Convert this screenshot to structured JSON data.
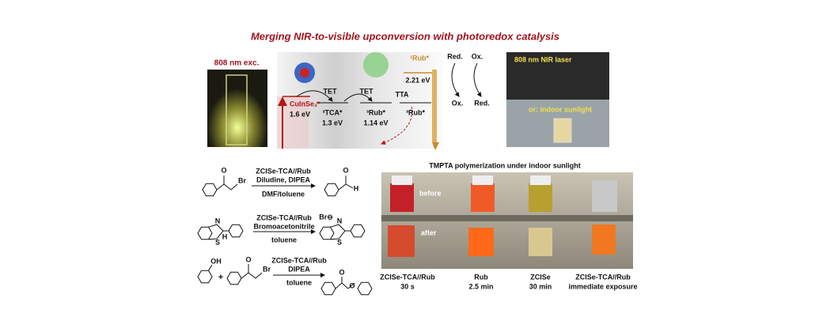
{
  "title": "Merging NIR-to-visible upconversion with photoredox catalysis",
  "excitation_photo": {
    "label": "808 nm exc."
  },
  "energy_diagram": {
    "donor": "CuInSe₂*",
    "donor_energy": "1.6 eV",
    "step1": "TET",
    "tca": "³TCA*",
    "tca_energy": "1.3 eV",
    "step2": "TET",
    "rub_triplet": "³Rub*",
    "rub_triplet_energy": "1.14 eV",
    "step3": "TTA",
    "rub_triplet_2": "³Rub*",
    "rub_singlet": "¹Rub*",
    "rub_singlet_energy": "2.21 eV",
    "cycle": [
      "Red.",
      "Ox.",
      "Ox.",
      "Red."
    ]
  },
  "setup_photo": {
    "label_top": "808 nm NIR laser",
    "label_bottom": "or: indoor sunlight"
  },
  "reactions": [
    {
      "reagents": [
        "ZCISe-TCA//Rub",
        "Diludine, DIPEA"
      ],
      "solvent": "DMF/toluene",
      "atoms": [
        "O",
        "Br",
        "O",
        "H"
      ]
    },
    {
      "reagents": [
        "ZCISe-TCA//Rub",
        "Bromoacetonitrile"
      ],
      "solvent": "toluene",
      "atoms": [
        "S",
        "H",
        "N",
        "Br⊖",
        "S",
        "N"
      ]
    },
    {
      "reagents": [
        "ZCISe-TCA//Rub",
        "DIPEA"
      ],
      "solvent": "toluene",
      "atoms": [
        "OH",
        "+",
        "O",
        "Br",
        "O",
        "O"
      ]
    }
  ],
  "polymerization": {
    "title": "TMPTA polymerization under indoor sunlight",
    "before": "before",
    "after": "after",
    "samples": [
      {
        "name": "ZCISe-TCA//Rub",
        "time": "30 s"
      },
      {
        "name": "Rub",
        "time": "2.5 min"
      },
      {
        "name": "ZCISe",
        "time": "30 min"
      },
      {
        "name": "ZCISe-TCA//Rub",
        "time": "immediate exposure"
      }
    ]
  }
}
